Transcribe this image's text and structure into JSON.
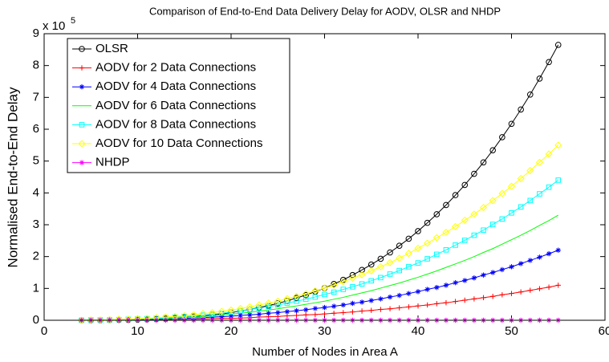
{
  "chart_data": {
    "type": "line",
    "title": "Comparison of End-to-End Data Delivery Delay for AODV, OLSR and NHDP",
    "xlabel": "Number of Nodes in Area A",
    "ylabel": "Normalised End-to-End Delay",
    "multiplier": {
      "base": "x 10",
      "exponent": "5"
    },
    "xlim": [
      0,
      60
    ],
    "xticks": [
      0,
      10,
      20,
      30,
      40,
      50,
      60
    ],
    "ylim": [
      0,
      9
    ],
    "yticks": [
      0,
      1,
      2,
      3,
      4,
      5,
      6,
      7,
      8,
      9
    ],
    "grid": false,
    "legend": "upper left",
    "x": [
      4,
      5,
      6,
      7,
      8,
      9,
      10,
      11,
      12,
      13,
      14,
      15,
      16,
      17,
      18,
      19,
      20,
      21,
      22,
      23,
      24,
      25,
      26,
      27,
      28,
      29,
      30,
      31,
      32,
      33,
      34,
      35,
      36,
      37,
      38,
      39,
      40,
      41,
      42,
      43,
      44,
      45,
      46,
      47,
      48,
      49,
      50,
      51,
      52,
      53,
      54,
      55
    ],
    "series": [
      {
        "name": "OLSR",
        "color": "#000000",
        "marker": "o",
        "values": [
          0,
          0,
          0,
          0.01,
          0.01,
          0.01,
          0.02,
          0.03,
          0.04,
          0.05,
          0.07,
          0.09,
          0.11,
          0.14,
          0.17,
          0.2,
          0.24,
          0.29,
          0.34,
          0.4,
          0.46,
          0.53,
          0.61,
          0.7,
          0.79,
          0.9,
          1.01,
          1.14,
          1.27,
          1.42,
          1.58,
          1.75,
          1.93,
          2.13,
          2.34,
          2.56,
          2.8,
          3.06,
          3.33,
          3.62,
          3.93,
          4.25,
          4.6,
          4.96,
          5.34,
          5.75,
          6.17,
          6.62,
          7.09,
          7.59,
          8.11,
          8.65
        ]
      },
      {
        "name": "AODV for 2 Data Connections",
        "color": "#ff0000",
        "marker": "+",
        "values": [
          0,
          0,
          0,
          0,
          0.01,
          0.01,
          0.01,
          0.01,
          0.02,
          0.02,
          0.02,
          0.03,
          0.03,
          0.04,
          0.05,
          0.06,
          0.06,
          0.07,
          0.08,
          0.1,
          0.11,
          0.12,
          0.14,
          0.15,
          0.17,
          0.18,
          0.2,
          0.22,
          0.24,
          0.26,
          0.29,
          0.31,
          0.34,
          0.36,
          0.39,
          0.42,
          0.45,
          0.48,
          0.52,
          0.55,
          0.59,
          0.63,
          0.67,
          0.71,
          0.75,
          0.8,
          0.84,
          0.89,
          0.94,
          0.99,
          1.04,
          1.1
        ]
      },
      {
        "name": "AODV for 4 Data Connections",
        "color": "#0000ff",
        "marker": "*",
        "values": [
          0,
          0,
          0,
          0.01,
          0.01,
          0.01,
          0.02,
          0.02,
          0.03,
          0.04,
          0.05,
          0.06,
          0.07,
          0.08,
          0.1,
          0.11,
          0.13,
          0.15,
          0.17,
          0.19,
          0.22,
          0.24,
          0.27,
          0.3,
          0.33,
          0.37,
          0.4,
          0.44,
          0.48,
          0.53,
          0.57,
          0.62,
          0.67,
          0.73,
          0.78,
          0.84,
          0.9,
          0.97,
          1.03,
          1.1,
          1.18,
          1.25,
          1.33,
          1.42,
          1.5,
          1.59,
          1.68,
          1.78,
          1.88,
          1.98,
          2.09,
          2.2
        ]
      },
      {
        "name": "AODV for 6 Data Connections",
        "color": "#00ff00",
        "marker": "none",
        "values": [
          0,
          0,
          0.01,
          0.01,
          0.02,
          0.02,
          0.03,
          0.04,
          0.05,
          0.06,
          0.07,
          0.09,
          0.1,
          0.12,
          0.14,
          0.17,
          0.19,
          0.22,
          0.25,
          0.29,
          0.32,
          0.36,
          0.41,
          0.45,
          0.5,
          0.55,
          0.6,
          0.66,
          0.72,
          0.79,
          0.86,
          0.93,
          1.01,
          1.09,
          1.17,
          1.26,
          1.35,
          1.45,
          1.55,
          1.66,
          1.77,
          1.88,
          2.0,
          2.13,
          2.25,
          2.39,
          2.53,
          2.67,
          2.82,
          2.98,
          3.13,
          3.3
        ]
      },
      {
        "name": "AODV for 8 Data Connections",
        "color": "#00ffff",
        "marker": "s",
        "values": [
          0,
          0.01,
          0.01,
          0.01,
          0.02,
          0.03,
          0.04,
          0.05,
          0.06,
          0.08,
          0.1,
          0.12,
          0.14,
          0.16,
          0.19,
          0.22,
          0.26,
          0.3,
          0.34,
          0.38,
          0.43,
          0.48,
          0.54,
          0.6,
          0.66,
          0.73,
          0.81,
          0.88,
          0.97,
          1.05,
          1.14,
          1.24,
          1.34,
          1.45,
          1.56,
          1.68,
          1.8,
          1.93,
          2.07,
          2.21,
          2.36,
          2.51,
          2.67,
          2.83,
          3.01,
          3.18,
          3.37,
          3.56,
          3.76,
          3.97,
          4.18,
          4.4
        ]
      },
      {
        "name": "AODV for 10 Data Connections",
        "color": "#ffff00",
        "marker": "d",
        "values": [
          0,
          0.01,
          0.01,
          0.02,
          0.03,
          0.03,
          0.05,
          0.06,
          0.08,
          0.1,
          0.12,
          0.14,
          0.17,
          0.21,
          0.24,
          0.28,
          0.32,
          0.37,
          0.42,
          0.48,
          0.54,
          0.6,
          0.68,
          0.75,
          0.83,
          0.92,
          1.01,
          1.1,
          1.21,
          1.32,
          1.43,
          1.55,
          1.68,
          1.81,
          1.95,
          2.1,
          2.26,
          2.42,
          2.59,
          2.76,
          2.94,
          3.14,
          3.33,
          3.54,
          3.76,
          3.98,
          4.21,
          4.45,
          4.7,
          4.96,
          5.22,
          5.5
        ]
      },
      {
        "name": "NHDP",
        "color": "#ff00ff",
        "marker": "*",
        "values": [
          0,
          0,
          0,
          0,
          0,
          0,
          0,
          0,
          0,
          0,
          0,
          0,
          0,
          0,
          0,
          0,
          0,
          0,
          0,
          0,
          0,
          0,
          0,
          0,
          0,
          0,
          0,
          0,
          0,
          0,
          0,
          0,
          0,
          0,
          0,
          0,
          0,
          0,
          0,
          0,
          0,
          0,
          0,
          0,
          0,
          0,
          0,
          0,
          0,
          0,
          0,
          0
        ]
      }
    ]
  }
}
